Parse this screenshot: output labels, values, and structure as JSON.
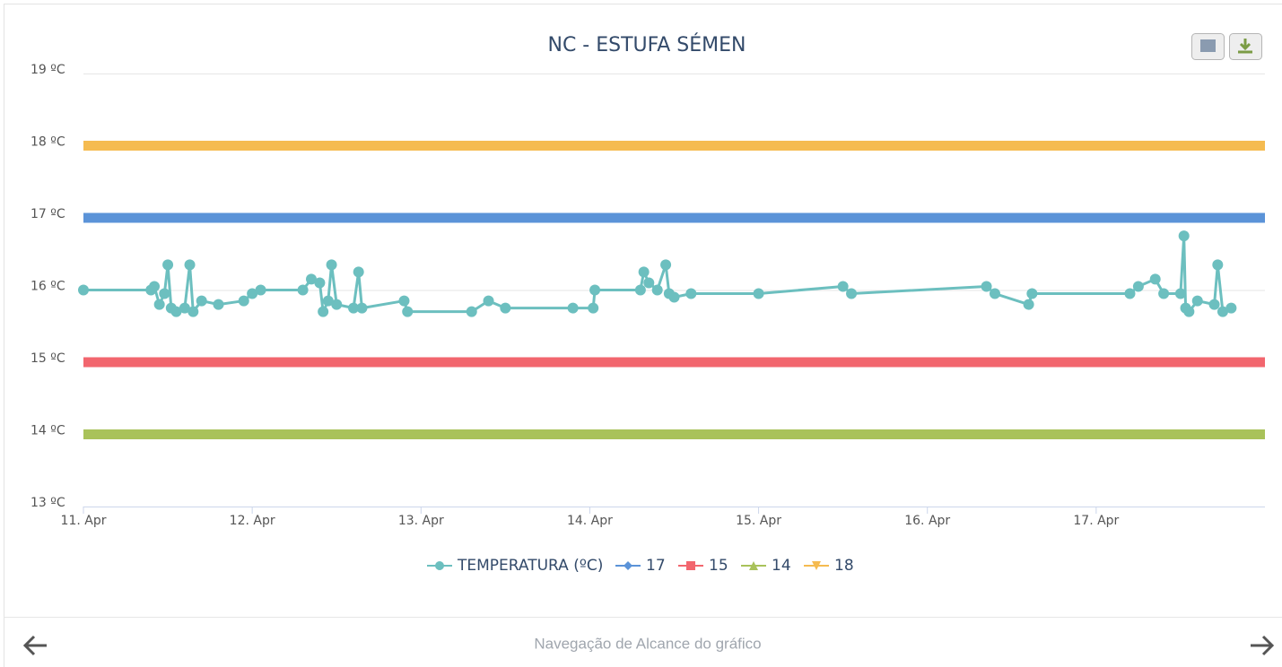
{
  "chart_data": {
    "type": "line",
    "title": "NC - ESTUFA SÉMEN",
    "xlim": [
      11,
      18
    ],
    "xticks": [
      {
        "value": 11,
        "label": "11. Apr"
      },
      {
        "value": 12,
        "label": "12. Apr"
      },
      {
        "value": 13,
        "label": "13. Apr"
      },
      {
        "value": 14,
        "label": "14. Apr"
      },
      {
        "value": 15,
        "label": "15. Apr"
      },
      {
        "value": 16,
        "label": "16. Apr"
      },
      {
        "value": 17,
        "label": "17. Apr"
      }
    ],
    "ylim": [
      13,
      19
    ],
    "yticks": [
      {
        "value": 13,
        "label": "13 ºC"
      },
      {
        "value": 14,
        "label": "14 ºC"
      },
      {
        "value": 15,
        "label": "15 ºC"
      },
      {
        "value": 16,
        "label": "16 ºC"
      },
      {
        "value": 17,
        "label": "17 ºC"
      },
      {
        "value": 18,
        "label": "18 ºC"
      },
      {
        "value": 19,
        "label": "19 ºC"
      }
    ],
    "grid": true,
    "legend": "bottom",
    "series": [
      {
        "name": "TEMPERATURA (ºC)",
        "color": "#6cbfbf",
        "marker": "circle",
        "x": [
          11.0,
          11.4,
          11.42,
          11.45,
          11.48,
          11.5,
          11.52,
          11.55,
          11.6,
          11.63,
          11.65,
          11.7,
          11.8,
          11.95,
          12.0,
          12.05,
          12.3,
          12.35,
          12.4,
          12.42,
          12.45,
          12.47,
          12.5,
          12.6,
          12.63,
          12.65,
          12.9,
          12.92,
          13.3,
          13.4,
          13.5,
          13.9,
          14.02,
          14.03,
          14.3,
          14.32,
          14.35,
          14.4,
          14.45,
          14.47,
          14.5,
          14.6,
          15.0,
          15.5,
          15.55,
          16.35,
          16.4,
          16.6,
          16.62,
          17.2,
          17.25,
          17.35,
          17.4,
          17.5,
          17.52,
          17.53,
          17.55,
          17.6,
          17.7,
          17.72,
          17.75,
          17.8
        ],
        "values": [
          16.0,
          16.0,
          16.05,
          15.8,
          15.95,
          16.35,
          15.75,
          15.7,
          15.75,
          16.35,
          15.7,
          15.85,
          15.8,
          15.85,
          15.95,
          16.0,
          16.0,
          16.15,
          16.1,
          15.7,
          15.85,
          16.35,
          15.8,
          15.75,
          16.25,
          15.75,
          15.85,
          15.7,
          15.7,
          15.85,
          15.75,
          15.75,
          15.75,
          16.0,
          16.0,
          16.25,
          16.1,
          16.0,
          16.35,
          15.95,
          15.9,
          15.95,
          15.95,
          16.05,
          15.95,
          16.05,
          15.95,
          15.8,
          15.95,
          15.95,
          16.05,
          16.15,
          15.95,
          15.95,
          16.75,
          15.75,
          15.7,
          15.85,
          15.8,
          16.35,
          15.7,
          15.75
        ]
      },
      {
        "name": "17",
        "color": "#5b93d8",
        "marker": "diamond",
        "x": [
          11,
          18
        ],
        "values": [
          17,
          17
        ]
      },
      {
        "name": "15",
        "color": "#f2666e",
        "marker": "square",
        "x": [
          11,
          18
        ],
        "values": [
          15,
          15
        ]
      },
      {
        "name": "14",
        "color": "#a9c25a",
        "marker": "triangle",
        "x": [
          11,
          18
        ],
        "values": [
          14,
          14
        ]
      },
      {
        "name": "18",
        "color": "#f5bb50",
        "marker": "triangle-down",
        "x": [
          11,
          18
        ],
        "values": [
          18,
          18
        ]
      }
    ]
  },
  "navigator": {
    "label": "Navegação de Alcance do gráfico"
  }
}
